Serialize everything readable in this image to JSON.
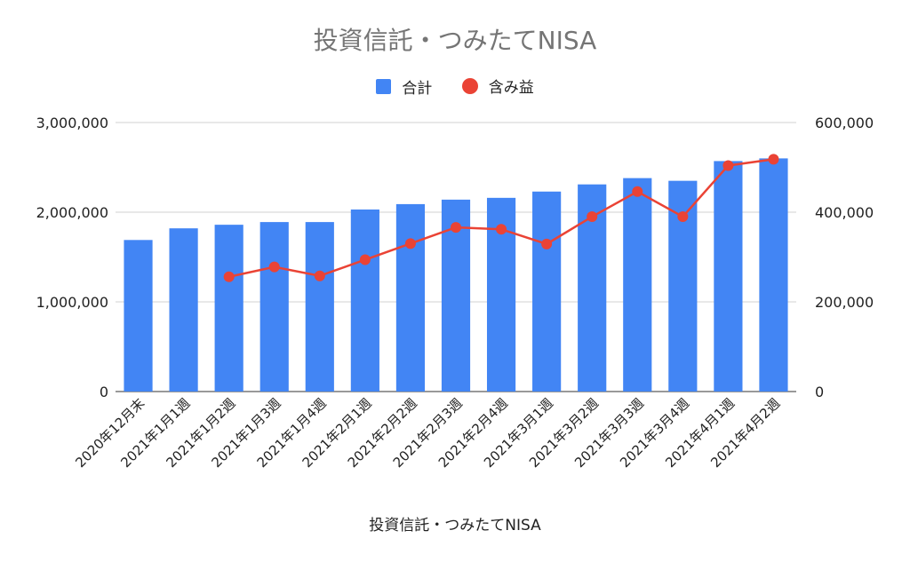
{
  "chart_data": {
    "type": "bar",
    "title": "投資信託・つみたてNISA",
    "xlabel": "投資信託・つみたてNISA",
    "ylabel": "",
    "categories": [
      "2020年12月末",
      "2021年1月1週",
      "2021年1月2週",
      "2021年1月3週",
      "2021年1月4週",
      "2021年2月1週",
      "2021年2月2週",
      "2021年2月3週",
      "2021年2月4週",
      "2021年3月1週",
      "2021年3月2週",
      "2021年3月3週",
      "2021年3月4週",
      "2021年4月1週",
      "2021年4月2週"
    ],
    "series": [
      {
        "name": "合計",
        "type": "bar",
        "axis": "left",
        "color": "#4285f4",
        "values": [
          1690000,
          1820000,
          1860000,
          1890000,
          1890000,
          2030000,
          2090000,
          2140000,
          2160000,
          2230000,
          2310000,
          2380000,
          2350000,
          2570000,
          2600000
        ]
      },
      {
        "name": "含み益",
        "type": "line",
        "axis": "right",
        "color": "#ea4335",
        "values": [
          null,
          null,
          256000,
          278000,
          258000,
          294000,
          330000,
          366000,
          362000,
          329000,
          390000,
          446000,
          390000,
          504000,
          518000
        ]
      }
    ],
    "ylim_left": [
      0,
      3000000
    ],
    "ylim_right": [
      0,
      600000
    ],
    "yticks_left": [
      "0",
      "1,000,000",
      "2,000,000",
      "3,000,000"
    ],
    "yticks_right": [
      "0",
      "200,000",
      "400,000",
      "600,000"
    ],
    "grid": true,
    "legend_position": "top"
  }
}
